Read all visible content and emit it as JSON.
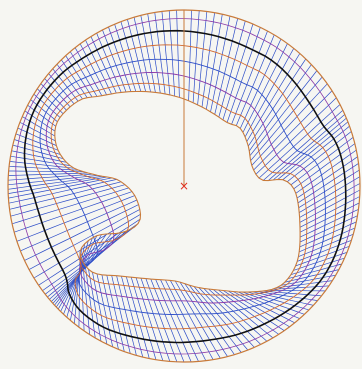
{
  "figure": {
    "kind": "orthogonal boundary-fitted grid between inner blob and outer circle",
    "colors": {
      "background": "#f6f6f2",
      "radial_lines": "#2f4fc8",
      "outer_boundary": "#c87a3a",
      "inner_boundary": "#c87a3a",
      "contour_orange": "#d0682e",
      "contour_purple": "#8a3aa8",
      "contour_blue": "#2f4fc8",
      "contour_black": "#101010",
      "center_marker": "#e03020",
      "center_line": "#c87a3a"
    },
    "center_marker": "×",
    "center_marker_icon": "cross-icon"
  }
}
